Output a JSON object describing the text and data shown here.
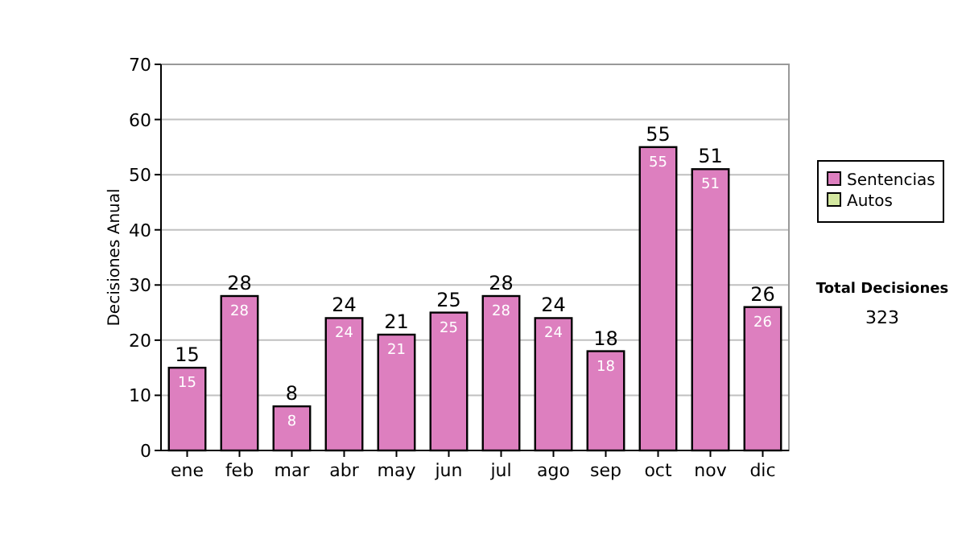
{
  "chart_data": {
    "type": "bar",
    "ylabel": "Decisiones Anual",
    "categories": [
      "ene",
      "feb",
      "mar",
      "abr",
      "may",
      "jun",
      "jul",
      "ago",
      "sep",
      "oct",
      "nov",
      "dic"
    ],
    "series": [
      {
        "name": "Sentencias",
        "color": "#dd7fbf",
        "values": [
          15,
          28,
          8,
          24,
          21,
          25,
          28,
          24,
          18,
          55,
          51,
          26
        ],
        "value_labels": [
          "15",
          "28",
          "8",
          "24",
          "21",
          "25",
          "28",
          "24",
          "18",
          "55",
          "51",
          "26"
        ]
      },
      {
        "name": "Autos",
        "color": "#d4e8a0",
        "values": [
          0,
          0,
          0,
          0,
          0,
          0,
          0,
          0,
          0,
          0,
          0,
          0
        ]
      }
    ],
    "totals": [
      "15",
      "28",
      "8",
      "24",
      "21",
      "25",
      "28",
      "24",
      "18",
      "55",
      "51",
      "26"
    ],
    "ylim": [
      0,
      70
    ],
    "yticks": [
      0,
      10,
      20,
      30,
      40,
      50,
      60,
      70
    ],
    "grid": "y",
    "legend": "right",
    "annotations": [
      "Total Decisiones",
      "323"
    ]
  }
}
